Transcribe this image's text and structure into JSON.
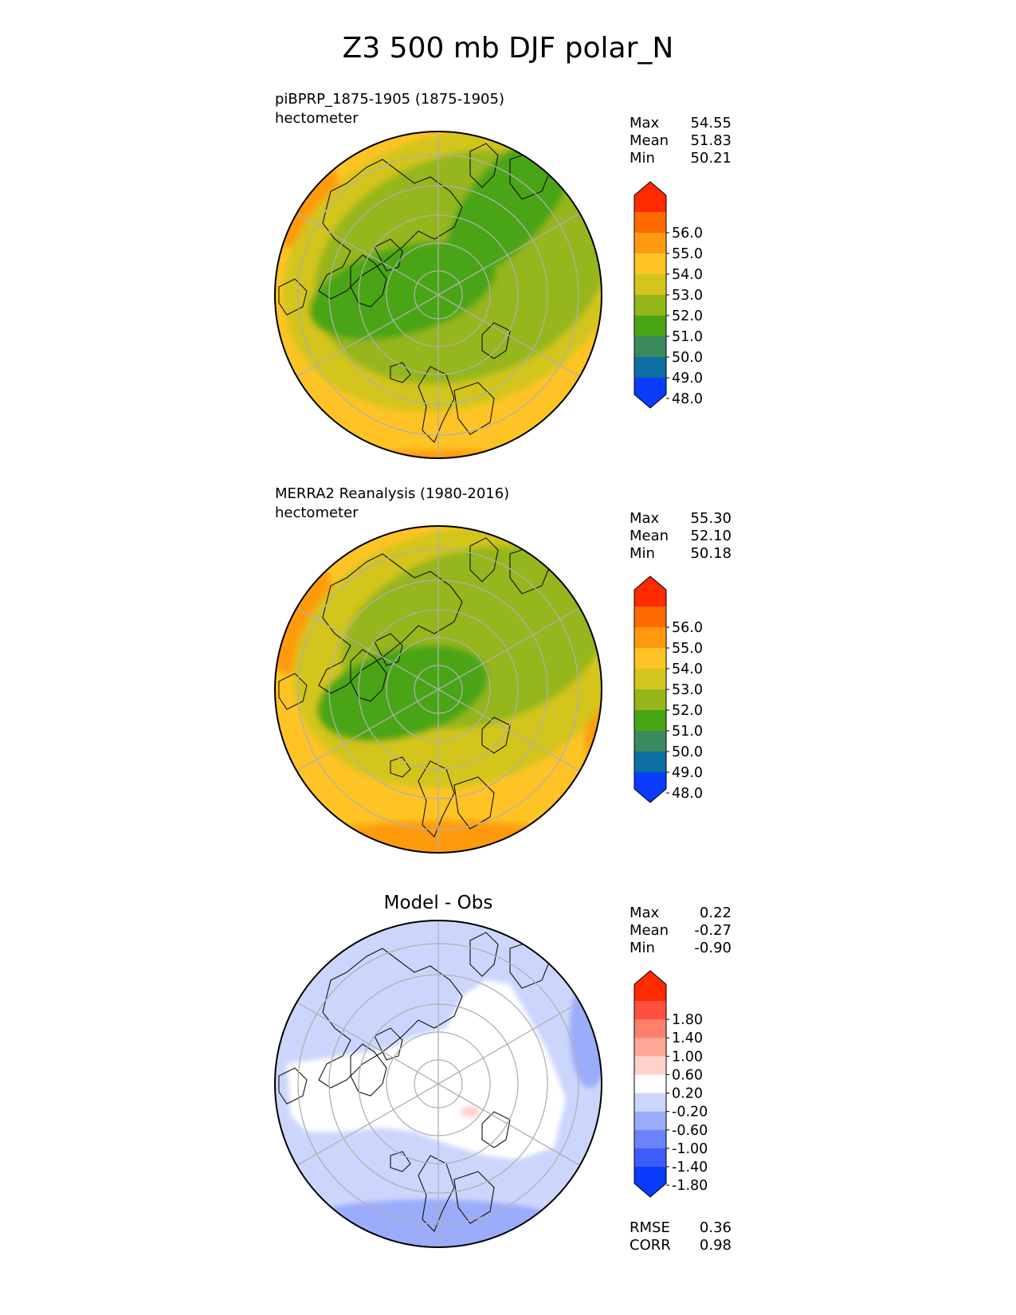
{
  "figure_title": "Z3 500 mb DJF polar_N",
  "chart_data": [
    {
      "type": "heatmap",
      "projection": "north-polar-stereographic",
      "title": "piBPRP_1875-1905 (1875-1905)",
      "units": "hectometer",
      "stats": [
        {
          "label": "Max",
          "value": "54.55"
        },
        {
          "label": "Mean",
          "value": "51.83"
        },
        {
          "label": "Min",
          "value": "50.21"
        }
      ],
      "colorbar": {
        "ticks": [
          "56.0",
          "55.0",
          "54.0",
          "53.0",
          "52.0",
          "51.0",
          "50.0",
          "49.0",
          "48.0"
        ],
        "colors": [
          "#ff2a00",
          "#ff6a00",
          "#ff9a10",
          "#fec425",
          "#d3c51e",
          "#95b61a",
          "#4aa515",
          "#3b8a5e",
          "#0c6ea2",
          "#0a3cfb"
        ],
        "extend": "both"
      },
      "field_colors": {
        "outer": "#fec425",
        "warm": "#ff9a10",
        "ring1": "#d3c51e",
        "ring2": "#95b61a",
        "core": "#4aa515"
      }
    },
    {
      "type": "heatmap",
      "projection": "north-polar-stereographic",
      "title": "MERRA2 Reanalysis (1980-2016)",
      "units": "hectometer",
      "stats": [
        {
          "label": "Max",
          "value": "55.30"
        },
        {
          "label": "Mean",
          "value": "52.10"
        },
        {
          "label": "Min",
          "value": "50.18"
        }
      ],
      "colorbar": {
        "ticks": [
          "56.0",
          "55.0",
          "54.0",
          "53.0",
          "52.0",
          "51.0",
          "50.0",
          "49.0",
          "48.0"
        ],
        "colors": [
          "#ff2a00",
          "#ff6a00",
          "#ff9a10",
          "#fec425",
          "#d3c51e",
          "#95b61a",
          "#4aa515",
          "#3b8a5e",
          "#0c6ea2",
          "#0a3cfb"
        ],
        "extend": "both"
      },
      "field_colors": {
        "outer": "#fec425",
        "warm": "#ff9a10",
        "ring1": "#d3c51e",
        "ring2": "#95b61a",
        "core": "#4aa515"
      }
    },
    {
      "type": "heatmap",
      "projection": "north-polar-stereographic",
      "title": "Model - Obs",
      "units": "",
      "stats": [
        {
          "label": "Max",
          "value": "0.22"
        },
        {
          "label": "Mean",
          "value": "-0.27"
        },
        {
          "label": "Min",
          "value": "-0.90"
        }
      ],
      "colorbar": {
        "ticks": [
          "1.80",
          "1.40",
          "1.00",
          "0.60",
          "0.20",
          "-0.20",
          "-0.60",
          "-1.00",
          "-1.40",
          "-1.80"
        ],
        "colors": [
          "#ff2a00",
          "#ff5040",
          "#ff7f6e",
          "#ffa898",
          "#ffd2cb",
          "#ffffff",
          "#ccd6fc",
          "#9bacfb",
          "#6a83fa",
          "#3d5cfa",
          "#0a3cfb"
        ],
        "extend": "both"
      },
      "field_colors": {
        "outer": "#ccd6fc",
        "low": "#9bacfb",
        "near_zero": "#ffffff",
        "high": "#ffd2cb"
      },
      "metrics": [
        {
          "label": "RMSE",
          "value": "0.36"
        },
        {
          "label": "CORR",
          "value": "0.98"
        }
      ]
    }
  ]
}
